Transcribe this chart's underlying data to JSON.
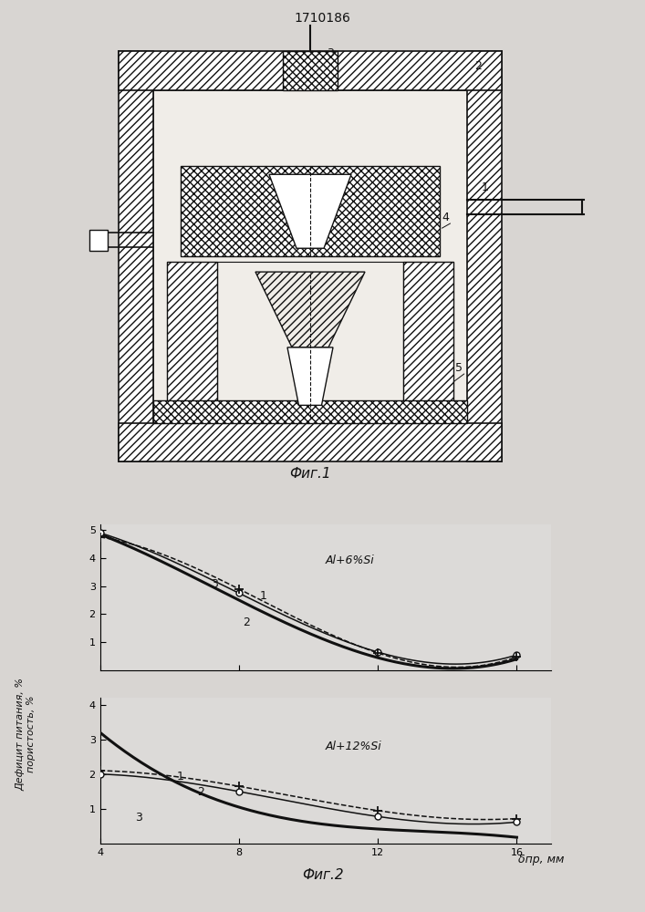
{
  "title": "1710186",
  "fig1_label": "Фиг.1",
  "fig2_label": "Фиг.2",
  "ylabel": "Дефицит питания, %\nпористость, %",
  "xlabel": "δпр, мм",
  "chart1_label": "Al+6%Si",
  "chart2_label": "Al+12%Si",
  "bg_color": "#dcdad8",
  "line_color": "#111111",
  "chart1": {
    "curve1_x": [
      4,
      8,
      12,
      16
    ],
    "curve1_y": [
      4.9,
      2.75,
      0.65,
      0.55
    ],
    "curve2_x": [
      4,
      8,
      12,
      16
    ],
    "curve2_y": [
      4.85,
      2.5,
      0.45,
      0.4
    ],
    "curve3_x": [
      4,
      8,
      12,
      16
    ],
    "curve3_y": [
      4.75,
      2.9,
      0.62,
      0.48
    ]
  },
  "chart2": {
    "curve1_x": [
      4,
      8,
      12,
      16
    ],
    "curve1_y": [
      2.1,
      1.65,
      0.95,
      0.72
    ],
    "curve2_x": [
      4,
      8,
      12,
      16
    ],
    "curve2_y": [
      2.0,
      1.5,
      0.78,
      0.62
    ],
    "curve3_x": [
      4,
      8,
      12,
      16
    ],
    "curve3_y": [
      3.2,
      1.05,
      0.42,
      0.18
    ]
  }
}
